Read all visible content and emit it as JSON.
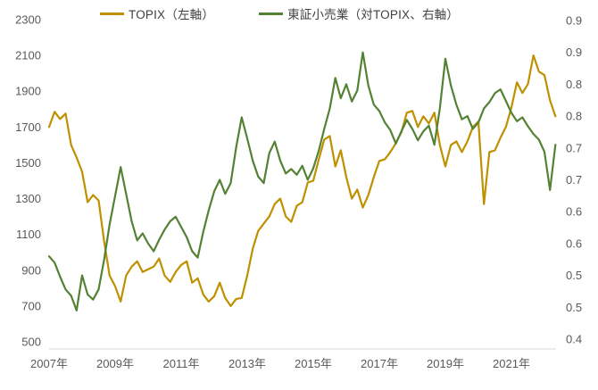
{
  "legend": {
    "items": [
      {
        "label": "TOPIX（左軸）",
        "color": "#BF9000"
      },
      {
        "label": "東証小売業（対TOPIX、右軸）",
        "color": "#548235"
      }
    ]
  },
  "colors": {
    "topix_line": "#BF9000",
    "retail_line": "#548235",
    "tick_label": "#595959",
    "axis_line": "#D9D9D9",
    "background": "#FFFFFF"
  },
  "chart_data": {
    "type": "line",
    "title": "",
    "grid": "off",
    "legend_position": "top",
    "x_axis": {
      "tick_labels": [
        "2007年",
        "2009年",
        "2011年",
        "2013年",
        "2015年",
        "2017年",
        "2019年",
        "2021年"
      ],
      "tick_years": [
        2007,
        2009,
        2011,
        2013,
        2015,
        2017,
        2019,
        2021
      ],
      "range_years": [
        2007.0,
        2022.4
      ]
    },
    "left_axis": {
      "label": "TOPIX（左軸）",
      "min": 500,
      "max": 2300,
      "step": 200,
      "tick_labels": [
        "500",
        "700",
        "900",
        "1100",
        "1300",
        "1500",
        "1700",
        "1900",
        "2100",
        "2300"
      ]
    },
    "right_axis": {
      "label": "東証小売業（対TOPIX、右軸）",
      "min": 0.4,
      "max": 0.9,
      "step": 0.05,
      "tick_labels": [
        "0.4",
        "0.5",
        "0.5",
        "0.6",
        "0.6",
        "0.7",
        "0.7",
        "0.8",
        "0.8",
        "0.9",
        "0.9"
      ]
    },
    "sampling": {
      "t_start": 2007.0,
      "t_step_years": 0.16667,
      "note": "values sampled every ~2 months"
    },
    "series": [
      {
        "name": "TOPIX（左軸）",
        "axis": "left",
        "color": "#BF9000",
        "values": [
          1700,
          1785,
          1745,
          1775,
          1600,
          1530,
          1450,
          1280,
          1320,
          1290,
          1060,
          870,
          810,
          725,
          870,
          920,
          950,
          890,
          905,
          920,
          965,
          870,
          835,
          890,
          930,
          950,
          830,
          855,
          765,
          725,
          755,
          830,
          745,
          700,
          740,
          745,
          870,
          1020,
          1120,
          1160,
          1200,
          1270,
          1300,
          1200,
          1170,
          1260,
          1280,
          1390,
          1400,
          1520,
          1630,
          1650,
          1480,
          1570,
          1420,
          1300,
          1350,
          1250,
          1320,
          1420,
          1510,
          1520,
          1560,
          1610,
          1670,
          1780,
          1790,
          1700,
          1760,
          1720,
          1780,
          1600,
          1480,
          1600,
          1620,
          1560,
          1620,
          1700,
          1730,
          1270,
          1560,
          1570,
          1640,
          1700,
          1810,
          1950,
          1890,
          1940,
          2100,
          2010,
          1990,
          1850,
          1760
        ]
      },
      {
        "name": "東証小売業（対TOPIX、右軸）",
        "axis": "right",
        "color": "#548235",
        "values": [
          0.53,
          0.52,
          0.498,
          0.478,
          0.468,
          0.445,
          0.5,
          0.47,
          0.462,
          0.478,
          0.525,
          0.58,
          0.625,
          0.67,
          0.628,
          0.585,
          0.555,
          0.566,
          0.55,
          0.538,
          0.556,
          0.572,
          0.585,
          0.592,
          0.576,
          0.56,
          0.538,
          0.528,
          0.568,
          0.602,
          0.632,
          0.65,
          0.628,
          0.645,
          0.702,
          0.748,
          0.715,
          0.68,
          0.655,
          0.645,
          0.692,
          0.71,
          0.68,
          0.66,
          0.667,
          0.658,
          0.672,
          0.65,
          0.668,
          0.696,
          0.73,
          0.762,
          0.81,
          0.778,
          0.8,
          0.773,
          0.79,
          0.85,
          0.798,
          0.768,
          0.758,
          0.74,
          0.728,
          0.707,
          0.726,
          0.744,
          0.73,
          0.712,
          0.726,
          0.735,
          0.705,
          0.762,
          0.84,
          0.798,
          0.768,
          0.745,
          0.75,
          0.73,
          0.74,
          0.762,
          0.772,
          0.786,
          0.792,
          0.774,
          0.755,
          0.742,
          0.748,
          0.734,
          0.722,
          0.713,
          0.694,
          0.634,
          0.705
        ]
      }
    ]
  }
}
